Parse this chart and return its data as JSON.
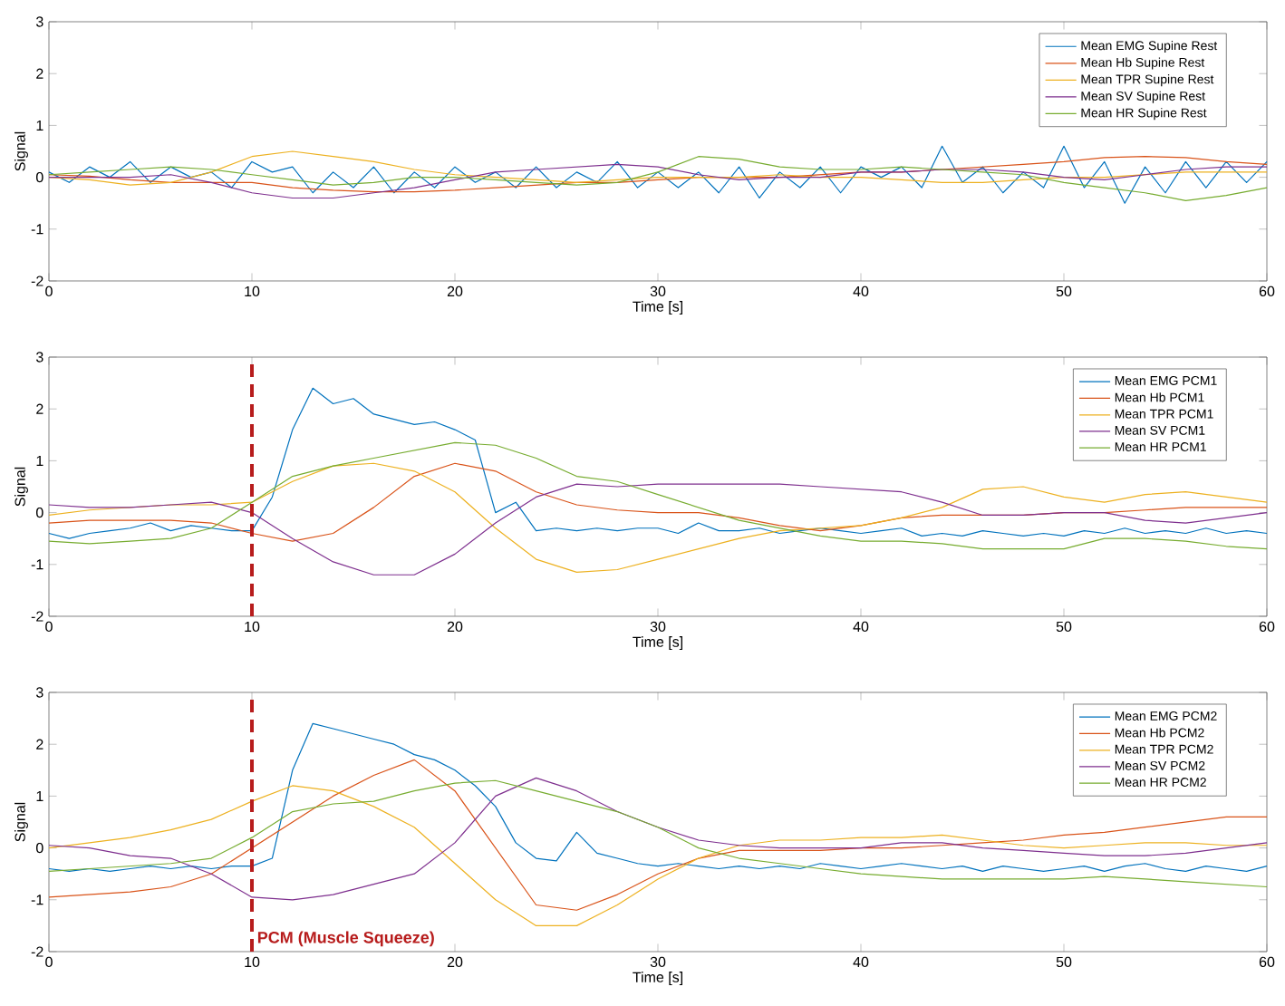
{
  "chart_data": [
    {
      "type": "line",
      "xlabel": "Time [s]",
      "ylabel": "Signal",
      "xlim": [
        0,
        60
      ],
      "ylim": [
        -2,
        3
      ],
      "xticks": [
        0,
        10,
        20,
        30,
        40,
        50,
        60
      ],
      "yticks": [
        -2,
        -1,
        0,
        1,
        2,
        3
      ],
      "legend": "top right",
      "x": [
        0,
        2,
        4,
        6,
        8,
        10,
        12,
        14,
        16,
        18,
        20,
        22,
        24,
        26,
        28,
        30,
        32,
        34,
        36,
        38,
        40,
        42,
        44,
        46,
        48,
        50,
        52,
        54,
        56,
        58,
        60
      ],
      "series": [
        {
          "name": "Mean EMG Supine Rest",
          "color": "#0072bd",
          "x": [
            0,
            1,
            2,
            3,
            4,
            5,
            6,
            7,
            8,
            9,
            10,
            11,
            12,
            13,
            14,
            15,
            16,
            17,
            18,
            19,
            20,
            21,
            22,
            23,
            24,
            25,
            26,
            27,
            28,
            29,
            30,
            31,
            32,
            33,
            34,
            35,
            36,
            37,
            38,
            39,
            40,
            41,
            42,
            43,
            44,
            45,
            46,
            47,
            48,
            49,
            50,
            51,
            52,
            53,
            54,
            55,
            56,
            57,
            58,
            59,
            60
          ],
          "values": [
            0.1,
            -0.1,
            0.2,
            0,
            0.3,
            -0.1,
            0.2,
            0,
            0.1,
            -0.2,
            0.3,
            0.1,
            0.2,
            -0.3,
            0.1,
            -0.2,
            0.2,
            -0.3,
            0.1,
            -0.2,
            0.2,
            -0.1,
            0.1,
            -0.2,
            0.2,
            -0.2,
            0.1,
            -0.1,
            0.3,
            -0.2,
            0.1,
            -0.2,
            0.1,
            -0.3,
            0.2,
            -0.4,
            0.1,
            -0.2,
            0.2,
            -0.3,
            0.2,
            0,
            0.2,
            -0.2,
            0.6,
            -0.1,
            0.2,
            -0.3,
            0.1,
            -0.2,
            0.6,
            -0.2,
            0.3,
            -0.5,
            0.2,
            -0.3,
            0.3,
            -0.2,
            0.3,
            -0.1,
            0.3
          ]
        },
        {
          "name": "Mean Hb Supine Rest",
          "color": "#d95319",
          "values": [
            0.05,
            0.02,
            -0.05,
            -0.1,
            -0.1,
            -0.1,
            -0.2,
            -0.25,
            -0.28,
            -0.28,
            -0.25,
            -0.2,
            -0.15,
            -0.1,
            -0.1,
            -0.05,
            0,
            0,
            0,
            0.05,
            0.1,
            0.1,
            0.15,
            0.2,
            0.25,
            0.3,
            0.38,
            0.4,
            0.38,
            0.3,
            0.25
          ]
        },
        {
          "name": "Mean TPR Supine Rest",
          "color": "#edb120",
          "values": [
            0,
            -0.05,
            -0.15,
            -0.1,
            0.1,
            0.4,
            0.5,
            0.4,
            0.3,
            0.15,
            0.05,
            0,
            -0.05,
            -0.1,
            -0.05,
            0,
            0,
            0,
            0.05,
            0,
            0,
            -0.05,
            -0.1,
            -0.1,
            -0.05,
            0,
            0,
            0.05,
            0.1,
            0.1,
            0.1
          ]
        },
        {
          "name": "Mean SV Supine Rest",
          "color": "#7e2f8e",
          "values": [
            0,
            0,
            0,
            0.05,
            -0.1,
            -0.3,
            -0.4,
            -0.4,
            -0.3,
            -0.2,
            -0.05,
            0.1,
            0.15,
            0.2,
            0.25,
            0.2,
            0.05,
            -0.05,
            0,
            0,
            0.1,
            0.1,
            0.15,
            0.15,
            0.1,
            0,
            -0.05,
            0.05,
            0.15,
            0.2,
            0.2
          ]
        },
        {
          "name": "Mean HR Supine Rest",
          "color": "#77ac30",
          "values": [
            0.05,
            0.1,
            0.15,
            0.2,
            0.15,
            0.05,
            -0.05,
            -0.15,
            -0.1,
            0,
            0,
            -0.05,
            -0.1,
            -0.15,
            -0.1,
            0.1,
            0.4,
            0.35,
            0.2,
            0.15,
            0.15,
            0.2,
            0.15,
            0.1,
            0.05,
            -0.1,
            -0.2,
            -0.3,
            -0.45,
            -0.35,
            -0.2
          ]
        }
      ]
    },
    {
      "type": "line",
      "xlabel": "Time [s]",
      "ylabel": "Signal",
      "xlim": [
        0,
        60
      ],
      "ylim": [
        -2,
        3
      ],
      "xticks": [
        0,
        10,
        20,
        30,
        40,
        50,
        60
      ],
      "yticks": [
        -2,
        -1,
        0,
        1,
        2,
        3
      ],
      "legend": "top right",
      "x": [
        0,
        2,
        4,
        6,
        8,
        10,
        12,
        14,
        16,
        18,
        20,
        22,
        24,
        26,
        28,
        30,
        32,
        34,
        36,
        38,
        40,
        42,
        44,
        46,
        48,
        50,
        52,
        54,
        56,
        58,
        60
      ],
      "ref_lines": [
        {
          "axis": "x",
          "value": 10,
          "color": "#b71c1c",
          "line_style": "dashed"
        }
      ],
      "series": [
        {
          "name": "Mean EMG PCM1",
          "color": "#0072bd",
          "x": [
            0,
            1,
            2,
            3,
            4,
            5,
            6,
            7,
            8,
            9,
            10,
            11,
            12,
            13,
            14,
            15,
            16,
            17,
            18,
            19,
            20,
            21,
            22,
            23,
            24,
            25,
            26,
            27,
            28,
            29,
            30,
            31,
            32,
            33,
            34,
            35,
            36,
            37,
            38,
            39,
            40,
            41,
            42,
            43,
            44,
            45,
            46,
            47,
            48,
            49,
            50,
            51,
            52,
            53,
            54,
            55,
            56,
            57,
            58,
            59,
            60
          ],
          "values": [
            -0.4,
            -0.5,
            -0.4,
            -0.35,
            -0.3,
            -0.2,
            -0.35,
            -0.25,
            -0.3,
            -0.35,
            -0.35,
            0.3,
            1.6,
            2.4,
            2.1,
            2.2,
            1.9,
            1.8,
            1.7,
            1.75,
            1.6,
            1.4,
            0,
            0.2,
            -0.35,
            -0.3,
            -0.35,
            -0.3,
            -0.35,
            -0.3,
            -0.3,
            -0.4,
            -0.2,
            -0.35,
            -0.35,
            -0.3,
            -0.4,
            -0.35,
            -0.3,
            -0.35,
            -0.4,
            -0.35,
            -0.3,
            -0.45,
            -0.4,
            -0.45,
            -0.35,
            -0.4,
            -0.45,
            -0.4,
            -0.45,
            -0.35,
            -0.4,
            -0.3,
            -0.4,
            -0.35,
            -0.4,
            -0.3,
            -0.4,
            -0.35,
            -0.4
          ]
        },
        {
          "name": "Mean Hb PCM1",
          "color": "#d95319",
          "values": [
            -0.2,
            -0.15,
            -0.15,
            -0.15,
            -0.2,
            -0.4,
            -0.55,
            -0.4,
            0.1,
            0.7,
            0.95,
            0.8,
            0.4,
            0.15,
            0.05,
            0,
            0,
            -0.1,
            -0.25,
            -0.35,
            -0.25,
            -0.1,
            -0.05,
            -0.05,
            -0.05,
            0,
            0,
            0.05,
            0.1,
            0.1,
            0.1
          ]
        },
        {
          "name": "Mean TPR PCM1",
          "color": "#edb120",
          "values": [
            -0.05,
            0.05,
            0.1,
            0.15,
            0.15,
            0.2,
            0.6,
            0.9,
            0.95,
            0.8,
            0.4,
            -0.3,
            -0.9,
            -1.15,
            -1.1,
            -0.9,
            -0.7,
            -0.5,
            -0.35,
            -0.3,
            -0.25,
            -0.1,
            0.1,
            0.45,
            0.5,
            0.3,
            0.2,
            0.35,
            0.4,
            0.3,
            0.2
          ]
        },
        {
          "name": "Mean SV PCM1",
          "color": "#7e2f8e",
          "values": [
            0.15,
            0.1,
            0.1,
            0.15,
            0.2,
            0,
            -0.5,
            -0.95,
            -1.2,
            -1.2,
            -0.8,
            -0.2,
            0.3,
            0.55,
            0.5,
            0.55,
            0.55,
            0.55,
            0.55,
            0.5,
            0.45,
            0.4,
            0.2,
            -0.05,
            -0.05,
            0,
            0,
            -0.15,
            -0.2,
            -0.1,
            0
          ]
        },
        {
          "name": "Mean HR PCM1",
          "color": "#77ac30",
          "values": [
            -0.55,
            -0.6,
            -0.55,
            -0.5,
            -0.3,
            0.2,
            0.7,
            0.9,
            1.05,
            1.2,
            1.35,
            1.3,
            1.05,
            0.7,
            0.6,
            0.35,
            0.1,
            -0.15,
            -0.3,
            -0.45,
            -0.55,
            -0.55,
            -0.6,
            -0.7,
            -0.7,
            -0.7,
            -0.5,
            -0.5,
            -0.55,
            -0.65,
            -0.7
          ]
        }
      ]
    },
    {
      "type": "line",
      "xlabel": "Time [s]",
      "ylabel": "Signal",
      "xlim": [
        0,
        60
      ],
      "ylim": [
        -2,
        3
      ],
      "xticks": [
        0,
        10,
        20,
        30,
        40,
        50,
        60
      ],
      "yticks": [
        -2,
        -1,
        0,
        1,
        2,
        3
      ],
      "legend": "top right",
      "x": [
        0,
        2,
        4,
        6,
        8,
        10,
        12,
        14,
        16,
        18,
        20,
        22,
        24,
        26,
        28,
        30,
        32,
        34,
        36,
        38,
        40,
        42,
        44,
        46,
        48,
        50,
        52,
        54,
        56,
        58,
        60
      ],
      "ref_lines": [
        {
          "axis": "x",
          "value": 10,
          "label": "PCM (Muscle Squeeze)",
          "color": "#b71c1c",
          "line_style": "dashed"
        }
      ],
      "series": [
        {
          "name": "Mean EMG PCM2",
          "color": "#0072bd",
          "x": [
            0,
            1,
            2,
            3,
            4,
            5,
            6,
            7,
            8,
            9,
            10,
            11,
            12,
            13,
            14,
            15,
            16,
            17,
            18,
            19,
            20,
            21,
            22,
            23,
            24,
            25,
            26,
            27,
            28,
            29,
            30,
            31,
            32,
            33,
            34,
            35,
            36,
            37,
            38,
            39,
            40,
            41,
            42,
            43,
            44,
            45,
            46,
            47,
            48,
            49,
            50,
            51,
            52,
            53,
            54,
            55,
            56,
            57,
            58,
            59,
            60
          ],
          "values": [
            -0.4,
            -0.45,
            -0.4,
            -0.45,
            -0.4,
            -0.35,
            -0.4,
            -0.35,
            -0.4,
            -0.35,
            -0.35,
            -0.2,
            1.5,
            2.4,
            2.3,
            2.2,
            2.1,
            2.0,
            1.8,
            1.7,
            1.5,
            1.2,
            0.8,
            0.1,
            -0.2,
            -0.25,
            0.3,
            -0.1,
            -0.2,
            -0.3,
            -0.35,
            -0.3,
            -0.35,
            -0.4,
            -0.35,
            -0.4,
            -0.35,
            -0.4,
            -0.3,
            -0.35,
            -0.4,
            -0.35,
            -0.3,
            -0.35,
            -0.4,
            -0.35,
            -0.45,
            -0.35,
            -0.4,
            -0.45,
            -0.4,
            -0.35,
            -0.45,
            -0.35,
            -0.3,
            -0.4,
            -0.45,
            -0.35,
            -0.4,
            -0.45,
            -0.35
          ]
        },
        {
          "name": "Mean Hb PCM2",
          "color": "#d95319",
          "values": [
            -0.95,
            -0.9,
            -0.85,
            -0.75,
            -0.5,
            0,
            0.5,
            1.0,
            1.4,
            1.7,
            1.1,
            0,
            -1.1,
            -1.2,
            -0.9,
            -0.5,
            -0.2,
            -0.05,
            -0.05,
            -0.05,
            0,
            0,
            0.05,
            0.1,
            0.15,
            0.25,
            0.3,
            0.4,
            0.5,
            0.6,
            0.6
          ]
        },
        {
          "name": "Mean TPR PCM2",
          "color": "#edb120",
          "values": [
            0,
            0.1,
            0.2,
            0.35,
            0.55,
            0.9,
            1.2,
            1.1,
            0.8,
            0.4,
            -0.3,
            -1.0,
            -1.5,
            -1.5,
            -1.1,
            -0.6,
            -0.2,
            0.05,
            0.15,
            0.15,
            0.2,
            0.2,
            0.25,
            0.15,
            0.05,
            0,
            0.05,
            0.1,
            0.1,
            0.05,
            0.05
          ]
        },
        {
          "name": "Mean SV PCM2",
          "color": "#7e2f8e",
          "values": [
            0.05,
            0,
            -0.15,
            -0.2,
            -0.5,
            -0.95,
            -1.0,
            -0.9,
            -0.7,
            -0.5,
            0.1,
            1.0,
            1.35,
            1.1,
            0.7,
            0.4,
            0.15,
            0.05,
            0,
            0,
            0,
            0.1,
            0.1,
            0,
            -0.05,
            -0.1,
            -0.15,
            -0.15,
            -0.1,
            0,
            0.1
          ]
        },
        {
          "name": "Mean HR PCM2",
          "color": "#77ac30",
          "values": [
            -0.45,
            -0.4,
            -0.35,
            -0.3,
            -0.2,
            0.2,
            0.7,
            0.85,
            0.9,
            1.1,
            1.25,
            1.3,
            1.1,
            0.9,
            0.7,
            0.4,
            0,
            -0.2,
            -0.3,
            -0.4,
            -0.5,
            -0.55,
            -0.6,
            -0.6,
            -0.6,
            -0.6,
            -0.55,
            -0.6,
            -0.65,
            -0.7,
            -0.75
          ]
        }
      ]
    }
  ]
}
